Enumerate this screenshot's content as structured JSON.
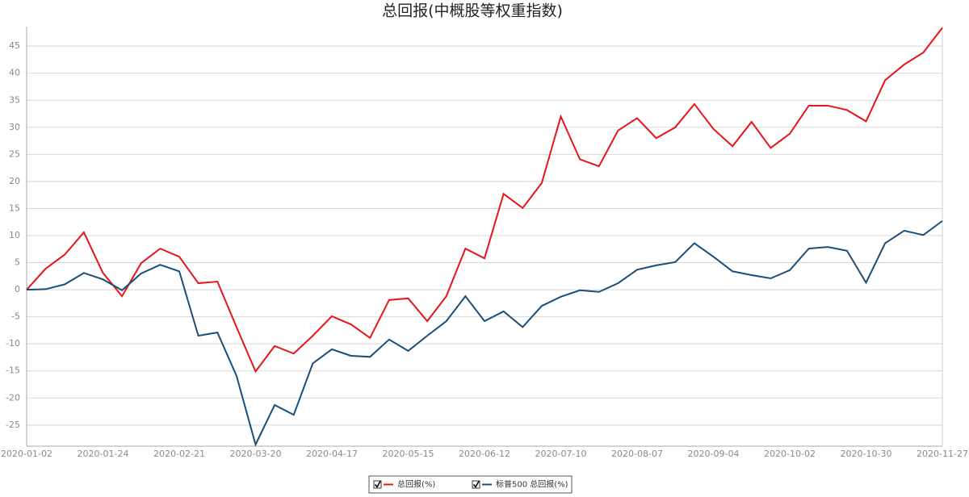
{
  "chart_data": {
    "type": "line",
    "title": "总回报(中概股等权重指数)",
    "categories": [
      "2020-01-02",
      null,
      null,
      null,
      "2020-01-24",
      null,
      null,
      null,
      "2020-02-21",
      null,
      null,
      null,
      "2020-03-20",
      null,
      null,
      null,
      "2020-04-17",
      null,
      null,
      null,
      "2020-05-15",
      null,
      null,
      null,
      "2020-06-12",
      null,
      null,
      null,
      "2020-07-10",
      null,
      null,
      null,
      "2020-08-07",
      null,
      null,
      null,
      "2020-09-04",
      null,
      null,
      null,
      "2020-10-02",
      null,
      null,
      null,
      "2020-10-30",
      null,
      null,
      null,
      "2020-11-27"
    ],
    "series": [
      {
        "name": "总回报(%)",
        "color": "#e8141c",
        "values": [
          0,
          3.9,
          6.5,
          10.6,
          3.1,
          -1.2,
          4.9,
          7.6,
          6.1,
          1.2,
          1.5,
          -6.9,
          -15.1,
          -10.4,
          -11.8,
          -8.5,
          -4.9,
          -6.4,
          -8.9,
          -1.9,
          -1.6,
          -5.8,
          -1.2,
          7.6,
          5.8,
          17.7,
          15.1,
          19.7,
          32.0,
          24.1,
          22.8,
          29.4,
          31.7,
          28.0,
          30.0,
          34.3,
          29.7,
          26.5,
          31.0,
          26.2,
          28.8,
          34.0,
          34.0,
          33.2,
          31.1,
          38.7,
          41.6,
          43.8,
          48.4
        ]
      },
      {
        "name": "标普500 总回报(%)",
        "color": "#1a4e78",
        "values": [
          0,
          0.1,
          1.0,
          3.1,
          1.9,
          -0.1,
          3.0,
          4.6,
          3.4,
          -8.5,
          -7.9,
          -15.9,
          -28.6,
          -21.3,
          -23.1,
          -13.6,
          -11.0,
          -12.2,
          -12.4,
          -9.2,
          -11.3,
          -8.5,
          -5.8,
          -1.2,
          -5.8,
          -4.0,
          -6.9,
          -3.0,
          -1.3,
          -0.1,
          -0.4,
          1.2,
          3.7,
          4.5,
          5.1,
          8.6,
          6.1,
          3.4,
          2.7,
          2.1,
          3.6,
          7.6,
          7.9,
          7.2,
          1.3,
          8.6,
          10.9,
          10.1,
          12.7
        ]
      }
    ],
    "ylim": [
      -28.9,
      48.6
    ],
    "yticks": [
      -25,
      -20,
      -15,
      -10,
      -5,
      0,
      5,
      10,
      15,
      20,
      25,
      30,
      35,
      40,
      45
    ],
    "grid": true,
    "legend": "bottom"
  }
}
